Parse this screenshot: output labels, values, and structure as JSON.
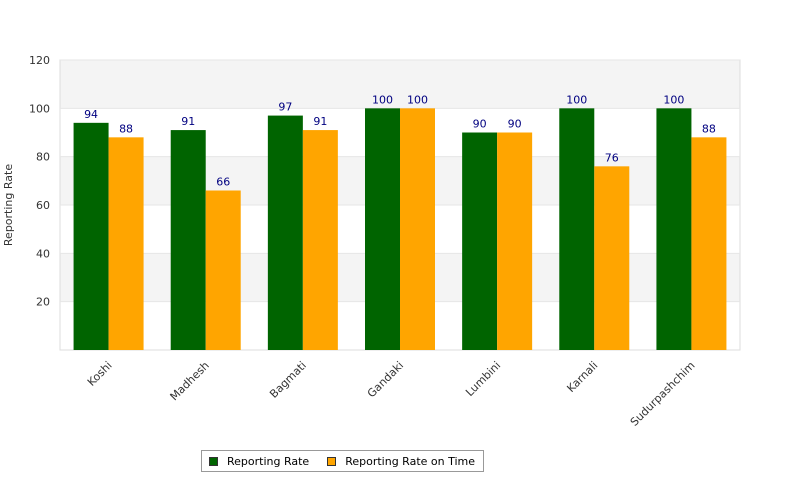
{
  "chart_data": {
    "type": "bar",
    "categories": [
      "Koshi",
      "Madhesh",
      "Bagmati",
      "Gandaki",
      "Lumbini",
      "Karnali",
      "Sudurpashchim"
    ],
    "series": [
      {
        "name": "Reporting Rate",
        "values": [
          94,
          91,
          97,
          100,
          90,
          100,
          100
        ],
        "color": "#006400"
      },
      {
        "name": "Reporting Rate on Time",
        "values": [
          88,
          66,
          91,
          100,
          90,
          76,
          88
        ],
        "color": "#FFA500"
      }
    ],
    "title": "",
    "xlabel": "",
    "ylabel": "Reporting Rate",
    "ylim": [
      0,
      120
    ],
    "yticks": [
      20,
      40,
      60,
      80,
      100,
      120
    ],
    "grid": true,
    "banded_background": true,
    "legend_position": "bottom"
  }
}
